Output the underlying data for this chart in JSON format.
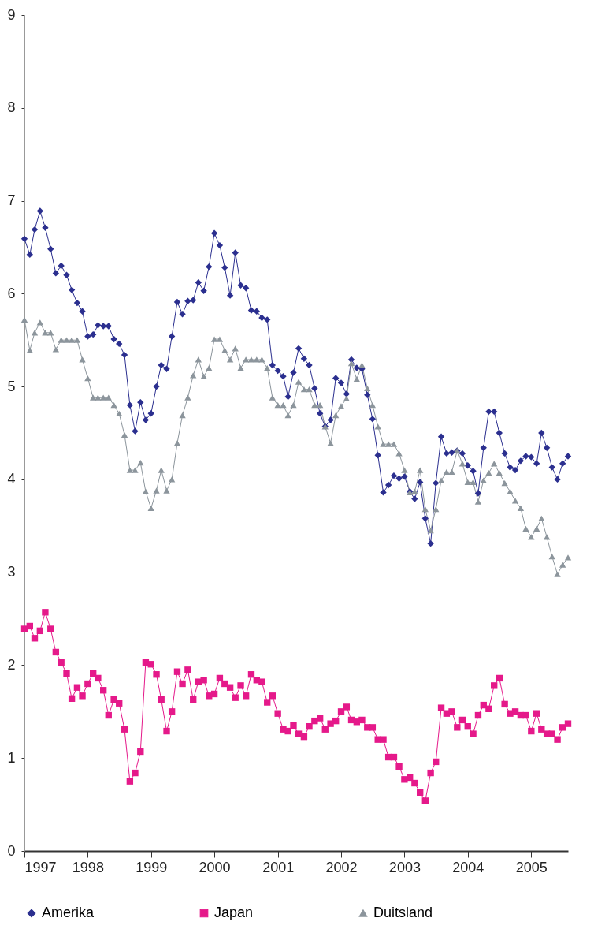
{
  "chart_data": {
    "type": "line",
    "x": [
      "1997-01",
      "1997-02",
      "1997-03",
      "1997-04",
      "1997-05",
      "1997-06",
      "1997-07",
      "1997-08",
      "1997-09",
      "1997-10",
      "1997-11",
      "1997-12",
      "1998-01",
      "1998-02",
      "1998-03",
      "1998-04",
      "1998-05",
      "1998-06",
      "1998-07",
      "1998-08",
      "1998-09",
      "1998-10",
      "1998-11",
      "1998-12",
      "1999-01",
      "1999-02",
      "1999-03",
      "1999-04",
      "1999-05",
      "1999-06",
      "1999-07",
      "1999-08",
      "1999-09",
      "1999-10",
      "1999-11",
      "1999-12",
      "2000-01",
      "2000-02",
      "2000-03",
      "2000-04",
      "2000-05",
      "2000-06",
      "2000-07",
      "2000-08",
      "2000-09",
      "2000-10",
      "2000-11",
      "2000-12",
      "2001-01",
      "2001-02",
      "2001-03",
      "2001-04",
      "2001-05",
      "2001-06",
      "2001-07",
      "2001-08",
      "2001-09",
      "2001-10",
      "2001-11",
      "2001-12",
      "2002-01",
      "2002-02",
      "2002-03",
      "2002-04",
      "2002-05",
      "2002-06",
      "2002-07",
      "2002-08",
      "2002-09",
      "2002-10",
      "2002-11",
      "2002-12",
      "2003-01",
      "2003-02",
      "2003-03",
      "2003-04",
      "2003-05",
      "2003-06",
      "2003-07",
      "2003-08",
      "2003-09",
      "2003-10",
      "2003-11",
      "2003-12",
      "2004-01",
      "2004-02",
      "2004-03",
      "2004-04",
      "2004-05",
      "2004-06",
      "2004-07",
      "2004-08",
      "2004-09",
      "2004-10",
      "2004-11",
      "2004-12",
      "2005-01",
      "2005-02",
      "2005-03",
      "2005-04",
      "2005-05",
      "2005-06",
      "2005-07",
      "2005-08"
    ],
    "series": [
      {
        "name": "Amerika",
        "color": "#2b2f8f",
        "marker": "diamond",
        "values": [
          6.59,
          6.42,
          6.69,
          6.89,
          6.71,
          6.48,
          6.22,
          6.3,
          6.2,
          6.04,
          5.9,
          5.81,
          5.54,
          5.56,
          5.66,
          5.65,
          5.65,
          5.51,
          5.46,
          5.34,
          4.8,
          4.52,
          4.83,
          4.64,
          4.71,
          5.0,
          5.23,
          5.19,
          5.54,
          5.91,
          5.78,
          5.92,
          5.93,
          6.12,
          6.03,
          6.29,
          6.65,
          6.52,
          6.28,
          5.98,
          6.44,
          6.09,
          6.06,
          5.82,
          5.81,
          5.74,
          5.72,
          5.23,
          5.17,
          5.11,
          4.89,
          5.15,
          5.41,
          5.3,
          5.23,
          4.98,
          4.71,
          4.57,
          4.64,
          5.09,
          5.04,
          4.92,
          5.29,
          5.2,
          5.19,
          4.91,
          4.65,
          4.26,
          3.86,
          3.94,
          4.04,
          4.01,
          4.03,
          3.87,
          3.79,
          3.97,
          3.58,
          3.31,
          3.96,
          4.46,
          4.28,
          4.29,
          4.31,
          4.28,
          4.15,
          4.09,
          3.85,
          4.34,
          4.73,
          4.73,
          4.5,
          4.28,
          4.13,
          4.1,
          4.2,
          4.25,
          4.24,
          4.17,
          4.5,
          4.34,
          4.13,
          4.0,
          4.17,
          4.25
        ]
      },
      {
        "name": "Japan",
        "color": "#e5198a",
        "marker": "square",
        "values": [
          2.39,
          2.42,
          2.29,
          2.37,
          2.57,
          2.39,
          2.14,
          2.03,
          1.91,
          1.64,
          1.76,
          1.67,
          1.8,
          1.91,
          1.86,
          1.73,
          1.46,
          1.63,
          1.59,
          1.31,
          0.75,
          0.84,
          1.07,
          2.03,
          2.01,
          1.9,
          1.63,
          1.29,
          1.5,
          1.93,
          1.8,
          1.95,
          1.63,
          1.82,
          1.84,
          1.67,
          1.69,
          1.86,
          1.8,
          1.76,
          1.65,
          1.78,
          1.67,
          1.9,
          1.84,
          1.82,
          1.6,
          1.67,
          1.48,
          1.31,
          1.29,
          1.35,
          1.26,
          1.23,
          1.34,
          1.4,
          1.43,
          1.31,
          1.37,
          1.4,
          1.5,
          1.55,
          1.41,
          1.39,
          1.41,
          1.33,
          1.33,
          1.2,
          1.2,
          1.01,
          1.01,
          0.91,
          0.77,
          0.79,
          0.73,
          0.63,
          0.54,
          0.84,
          0.96,
          1.54,
          1.48,
          1.5,
          1.33,
          1.41,
          1.34,
          1.26,
          1.46,
          1.57,
          1.53,
          1.78,
          1.86,
          1.58,
          1.48,
          1.5,
          1.46,
          1.46,
          1.29,
          1.48,
          1.31,
          1.26,
          1.26,
          1.2,
          1.33,
          1.37
        ]
      },
      {
        "name": "Duitsland",
        "color": "#8c959c",
        "marker": "triangle",
        "values": [
          5.72,
          5.39,
          5.58,
          5.69,
          5.58,
          5.58,
          5.4,
          5.5,
          5.5,
          5.5,
          5.5,
          5.29,
          5.09,
          4.88,
          4.88,
          4.88,
          4.88,
          4.8,
          4.71,
          4.48,
          4.1,
          4.1,
          4.18,
          3.87,
          3.69,
          3.88,
          4.1,
          3.88,
          4.0,
          4.39,
          4.69,
          4.88,
          5.12,
          5.29,
          5.11,
          5.2,
          5.51,
          5.51,
          5.39,
          5.29,
          5.41,
          5.2,
          5.29,
          5.29,
          5.29,
          5.29,
          5.2,
          4.88,
          4.8,
          4.8,
          4.69,
          4.8,
          5.05,
          4.97,
          4.97,
          4.8,
          4.8,
          4.57,
          4.39,
          4.69,
          4.79,
          4.87,
          5.25,
          5.08,
          5.23,
          4.98,
          4.8,
          4.57,
          4.38,
          4.38,
          4.38,
          4.28,
          4.1,
          3.86,
          3.87,
          4.1,
          3.68,
          3.45,
          3.68,
          3.99,
          4.08,
          4.08,
          4.31,
          4.17,
          3.97,
          3.97,
          3.76,
          3.99,
          4.07,
          4.17,
          4.07,
          3.96,
          3.87,
          3.77,
          3.69,
          3.47,
          3.38,
          3.47,
          3.58,
          3.38,
          3.17,
          2.98,
          3.08,
          3.16
        ]
      }
    ],
    "xlim": [
      "1997-01",
      "2005-08"
    ],
    "xticks": [
      "1997",
      "1998",
      "1999",
      "2000",
      "2001",
      "2002",
      "2003",
      "2004",
      "2005"
    ],
    "ylim": [
      0,
      9
    ],
    "yticks": [
      0,
      1,
      2,
      3,
      4,
      5,
      6,
      7,
      8,
      9
    ],
    "grid": false,
    "legend": "bottom"
  }
}
